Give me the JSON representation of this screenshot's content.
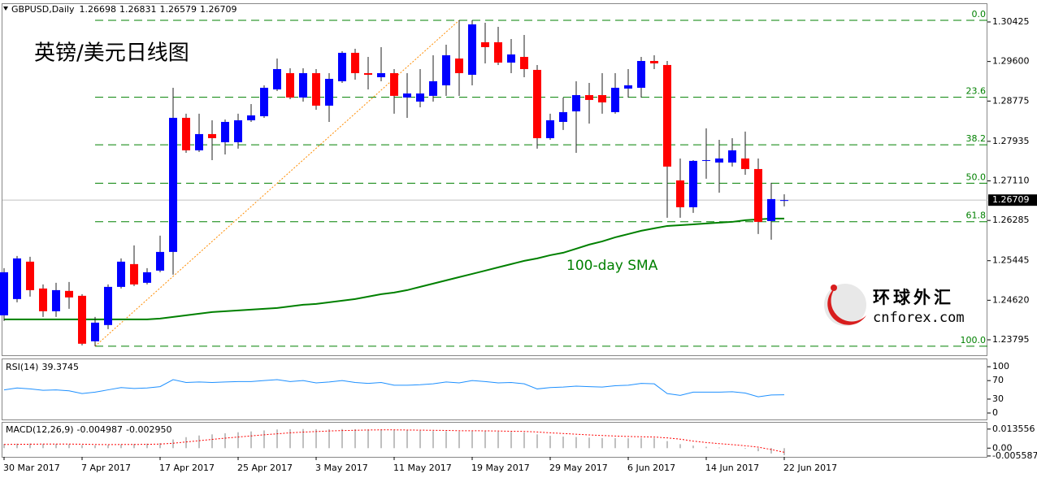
{
  "chart_data": [
    {
      "type": "candlestick",
      "title": "英镑/美元日线图",
      "symbol": "GBPUSD,Daily",
      "categories": [
        "30 Mar 2017",
        null,
        null,
        null,
        null,
        null,
        "7 Apr 2017",
        null,
        null,
        null,
        null,
        null,
        "17 Apr 2017",
        null,
        null,
        null,
        null,
        null,
        "25 Apr 2017",
        null,
        null,
        null,
        null,
        null,
        "3 May 2017",
        null,
        null,
        null,
        null,
        null,
        "11 May 2017",
        null,
        null,
        null,
        null,
        null,
        "19 May 2017",
        null,
        null,
        null,
        null,
        null,
        "29 May 2017",
        null,
        null,
        null,
        null,
        null,
        "6 Jun 2017",
        null,
        null,
        null,
        null,
        null,
        "14 Jun 2017",
        null,
        null,
        null,
        null,
        null,
        "22 Jun 2017"
      ],
      "open": [
        1.24306,
        1.24645,
        1.25425,
        1.24865,
        1.24391,
        1.24815,
        1.24713,
        1.23764,
        1.24103,
        1.24899,
        1.25374,
        1.24984,
        1.25238,
        1.25628,
        1.28425,
        1.27747,
        1.28086,
        1.27916,
        1.27916,
        1.28374,
        1.28459,
        1.29018,
        1.29357,
        1.28849,
        1.29357,
        1.28679,
        1.29188,
        1.29781,
        1.29357,
        1.29272,
        1.29357,
        1.28849,
        1.28764,
        1.28883,
        1.29103,
        1.29662,
        1.29323,
        1.30001,
        1.30001,
        1.29577,
        1.29696,
        1.29425,
        1.28001,
        1.2834,
        1.2856,
        1.28899,
        1.28899,
        1.28544,
        1.29035,
        1.29052,
        1.29611,
        1.29527,
        1.2712,
        1.2656,
        1.27527,
        1.27493,
        1.27493,
        1.27577,
        1.27357,
        1.26272,
        1.26698
      ],
      "high": [
        1.25289,
        1.25543,
        1.25526,
        1.2495,
        1.24984,
        1.25001,
        1.24747,
        1.24272,
        1.2495,
        1.25493,
        1.25764,
        1.25289,
        1.25967,
        1.29052,
        1.2851,
        1.2851,
        1.28374,
        1.28391,
        1.2851,
        1.28713,
        1.29103,
        1.29662,
        1.29459,
        1.29459,
        1.29442,
        1.29357,
        1.29815,
        1.29866,
        1.29696,
        1.299,
        1.29442,
        1.29357,
        1.29442,
        1.2973,
        1.2995,
        1.30459,
        1.30459,
        1.30408,
        1.30323,
        1.30069,
        1.30154,
        1.29527,
        1.2851,
        1.28849,
        1.29188,
        1.29154,
        1.29357,
        1.29357,
        1.29442,
        1.29696,
        1.2973,
        1.29611,
        1.27577,
        1.27543,
        1.28205,
        1.27967,
        1.28001,
        1.28137,
        1.27577,
        1.27069,
        1.26831
      ],
      "low": [
        1.24187,
        1.24577,
        1.24696,
        1.24272,
        1.24272,
        1.24442,
        1.23679,
        1.23662,
        1.24018,
        1.24865,
        1.24916,
        1.2495,
        1.25204,
        1.25154,
        1.27696,
        1.27713,
        1.27543,
        1.27662,
        1.27781,
        1.2834,
        1.28425,
        1.28984,
        1.28815,
        1.28764,
        1.28594,
        1.2834,
        1.29154,
        1.29222,
        1.29018,
        1.29188,
        1.2851,
        1.28425,
        1.28645,
        1.28764,
        1.28883,
        1.28883,
        1.29103,
        1.29561,
        1.29527,
        1.29357,
        1.29272,
        1.27781,
        1.27967,
        1.28171,
        1.27696,
        1.28306,
        1.2851,
        1.2851,
        1.28849,
        1.28849,
        1.29442,
        1.2634,
        1.2634,
        1.26442,
        1.27154,
        1.26865,
        1.27408,
        1.27238,
        1.26001,
        1.25882,
        1.26579
      ],
      "close": [
        1.25204,
        1.25493,
        1.24831,
        1.24391,
        1.24831,
        1.24679,
        1.23713,
        1.24153,
        1.24899,
        1.25425,
        1.2495,
        1.25204,
        1.25628,
        1.28425,
        1.27747,
        1.28086,
        1.28001,
        1.2834,
        1.28374,
        1.28476,
        1.29052,
        1.29442,
        1.28849,
        1.29357,
        1.28679,
        1.29238,
        1.29781,
        1.29357,
        1.29323,
        1.29357,
        1.28883,
        1.28933,
        1.28933,
        1.29188,
        1.2973,
        1.29357,
        1.30374,
        1.299,
        1.29577,
        1.29747,
        1.29442,
        1.28001,
        1.28374,
        1.28544,
        1.28899,
        1.28798,
        1.28747,
        1.29052,
        1.29103,
        1.29611,
        1.29561,
        1.27408,
        1.2656,
        1.27527,
        1.27543,
        1.27577,
        1.27747,
        1.27357,
        1.26255,
        1.2673,
        1.26709
      ],
      "up_color": "#0000ff",
      "down_color": "#ff0000",
      "wick_color": "#202020",
      "ylim": [
        1.23473,
        1.30798
      ],
      "yticks": [
        1.30425,
        {
          "value": 1.296,
          "label": "1.29600"
        },
        1.28775,
        1.27935,
        {
          "value": 1.2711,
          "label": "1.27110"
        },
        1.26285,
        1.25445,
        {
          "value": 1.2462,
          "label": "1.24620"
        },
        1.23795
      ],
      "sma": {
        "label": "100-day SMA",
        "color": "#008000",
        "values": [
          1.24221,
          1.24221,
          1.24221,
          1.24221,
          1.24221,
          1.24221,
          1.24221,
          1.24221,
          1.24221,
          1.24221,
          1.24221,
          1.24221,
          1.24238,
          1.24272,
          1.24306,
          1.2434,
          1.24374,
          1.24391,
          1.24408,
          1.24425,
          1.24442,
          1.24459,
          1.24493,
          1.24526,
          1.24543,
          1.24577,
          1.24611,
          1.24645,
          1.24696,
          1.24747,
          1.24781,
          1.24831,
          1.24899,
          1.24967,
          1.25035,
          1.25103,
          1.2517,
          1.25238,
          1.25306,
          1.25374,
          1.25442,
          1.25493,
          1.2556,
          1.25611,
          1.25696,
          1.25781,
          1.25848,
          1.25933,
          1.26001,
          1.26069,
          1.2612,
          1.2617,
          1.26187,
          1.26204,
          1.26221,
          1.26238,
          1.26255,
          1.26289,
          1.26306,
          1.26323,
          1.26323
        ]
      },
      "fibonacci": {
        "color": "#008000",
        "trend_color": "#ff8c00",
        "levels": [
          {
            "label": "0.0",
            "value": 1.30459
          },
          {
            "label": "23.6",
            "value": 1.28855
          },
          {
            "label": "38.2",
            "value": 1.27863
          },
          {
            "label": "50.0",
            "value": 1.27061
          },
          {
            "label": "61.8",
            "value": 1.26259
          },
          {
            "label": "100.0",
            "value": 1.23662
          }
        ]
      }
    },
    {
      "type": "line",
      "label": "RSI(14)",
      "color": "#1e90ff",
      "values": [
        50,
        54,
        52,
        49,
        50,
        48,
        42,
        45,
        50,
        55,
        53,
        54,
        57,
        72,
        66,
        67,
        66,
        67,
        68,
        68,
        70,
        72,
        68,
        70,
        65,
        67,
        70,
        66,
        64,
        66,
        60,
        60,
        61,
        63,
        67,
        65,
        70,
        68,
        65,
        66,
        63,
        52,
        55,
        56,
        58,
        57,
        56,
        59,
        60,
        64,
        63,
        42,
        38,
        45,
        45,
        45,
        46,
        43,
        35,
        39,
        39.3745
      ],
      "ylim": [
        -14,
        116
      ],
      "yticks": [
        100,
        70,
        30,
        0
      ]
    },
    {
      "type": "macd",
      "label": "MACD(12,26,9)",
      "color": "#c0c0c0",
      "values": [
        0.003,
        0.0032,
        0.0033,
        0.0031,
        0.003,
        0.0028,
        0.0022,
        0.002,
        0.0022,
        0.0027,
        0.003,
        0.0032,
        0.0036,
        0.0062,
        0.0078,
        0.009,
        0.0098,
        0.0106,
        0.0113,
        0.0119,
        0.0126,
        0.0133,
        0.0135,
        0.0136,
        0.0135,
        0.0135,
        0.0136,
        0.0135,
        0.0134,
        0.0133,
        0.013,
        0.0127,
        0.0124,
        0.0122,
        0.0121,
        0.0119,
        0.0121,
        0.0121,
        0.0118,
        0.0116,
        0.0112,
        0.0098,
        0.0088,
        0.0082,
        0.0079,
        0.0075,
        0.0072,
        0.0071,
        0.007,
        0.0072,
        0.0072,
        0.005,
        0.0028,
        0.0018,
        0.001,
        0.0004,
        0,
        -0.0005,
        -0.0022,
        -0.0038,
        -0.004987
      ],
      "signal": {
        "color": "#ff0000",
        "values": [
          0.0026,
          0.0027,
          0.0028,
          0.0029,
          0.0029,
          0.0029,
          0.0028,
          0.0026,
          0.0025,
          0.0026,
          0.0026,
          0.0027,
          0.0029,
          0.0035,
          0.0044,
          0.0053,
          0.0062,
          0.0071,
          0.0079,
          0.0087,
          0.0095,
          0.0102,
          0.0109,
          0.0114,
          0.0118,
          0.0122,
          0.0125,
          0.0127,
          0.0129,
          0.013,
          0.013,
          0.0129,
          0.0128,
          0.0127,
          0.0126,
          0.0124,
          0.0124,
          0.0123,
          0.0122,
          0.012,
          0.0119,
          0.0115,
          0.0109,
          0.0104,
          0.0099,
          0.0094,
          0.009,
          0.0086,
          0.0083,
          0.0081,
          0.0079,
          0.0073,
          0.0064,
          0.005,
          0.004,
          0.0032,
          0.0025,
          0.0017,
          0.0007,
          -0.001,
          -0.00295
        ],
        "value_labels": [
          null,
          null,
          null,
          null,
          null,
          null,
          null,
          null,
          null,
          null,
          null,
          null,
          null,
          null,
          null,
          null,
          null,
          null,
          null,
          null,
          null,
          null,
          null,
          null,
          null,
          null,
          null,
          null,
          null,
          null,
          null,
          null,
          null,
          null,
          null,
          null,
          null,
          null,
          null,
          null,
          null,
          null,
          null,
          null,
          null,
          null,
          null,
          null,
          null,
          null,
          null,
          null,
          null,
          null,
          null,
          null,
          null,
          null,
          null,
          null,
          "-0.002950"
        ]
      },
      "ylim": [
        -0.00621,
        0.01808
      ],
      "yticks": [
        0.013556,
        {
          "value": 0,
          "label": "0.00"
        },
        -0.005587
      ]
    }
  ],
  "watermark": {
    "name": "环球外汇",
    "site": "cnforex.com"
  }
}
